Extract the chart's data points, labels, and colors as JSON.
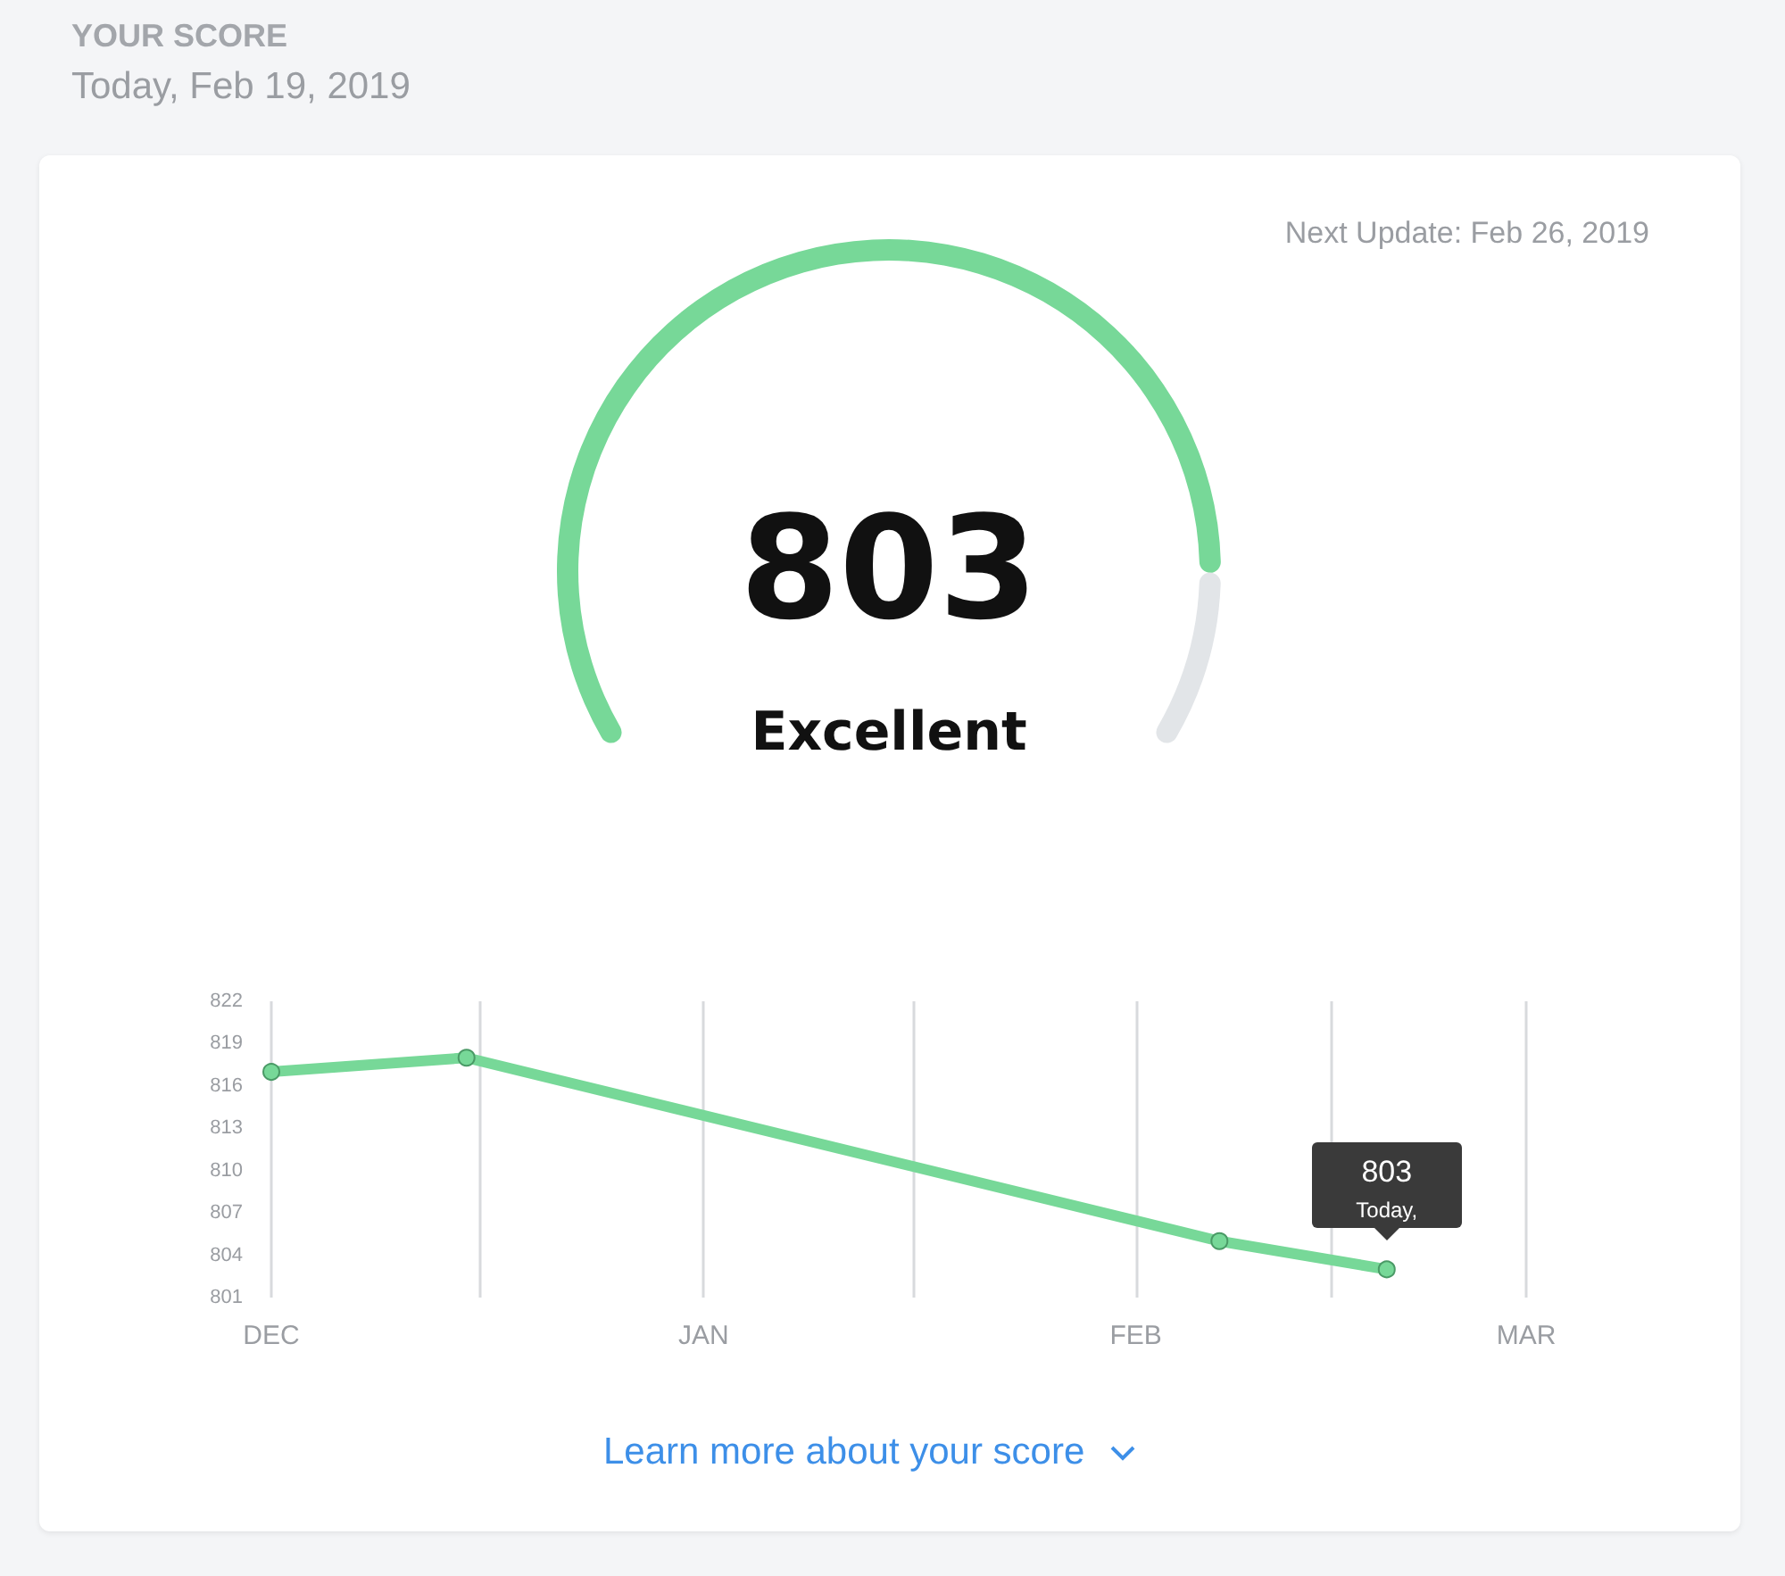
{
  "chart_data": [
    {
      "type": "donut",
      "title": "YOUR SCORE",
      "subtitle": "Today, Feb 19, 2019",
      "categories": [
        null,
        null
      ],
      "values": [
        87,
        13
      ],
      "colors": [
        "#77d898",
        "#e2e5e8"
      ],
      "annotations": [
        "Next Update: Feb 26, 2019",
        "803",
        "Excellent",
        "Learn more about your score"
      ]
    },
    {
      "type": "line",
      "x": [
        "2018-12-01",
        "2018-12-15",
        "2019-02-07",
        "2019-02-19"
      ],
      "series": [
        {
          "color": "#77d898",
          "values": [
            817,
            818,
            805,
            803
          ]
        }
      ],
      "xlim": [
        "2018-12-01",
        "2019-03-01"
      ],
      "xticks": [
        {
          "value": "2018-12-01",
          "label": "DEC"
        },
        {
          "value": "2018-12-16",
          "label": null
        },
        {
          "value": "2019-01-01",
          "label": "JAN"
        },
        {
          "value": "2019-01-16",
          "label": null
        },
        {
          "value": "2019-02-01",
          "label": "FEB"
        },
        {
          "value": "2019-02-15",
          "label": null
        },
        {
          "value": "2019-03-01",
          "label": "MAR"
        }
      ],
      "ylim": [
        801,
        822
      ],
      "yticks": [
        801,
        804,
        807,
        810,
        813,
        816,
        819,
        822
      ],
      "grid": "x",
      "marker": "circle",
      "line_style": "solid",
      "annotations": [
        {
          "text": "803",
          "x": "2019-02-19",
          "y": 803
        },
        {
          "text": "Today,",
          "x": "2019-02-19",
          "y": 803
        }
      ]
    }
  ]
}
